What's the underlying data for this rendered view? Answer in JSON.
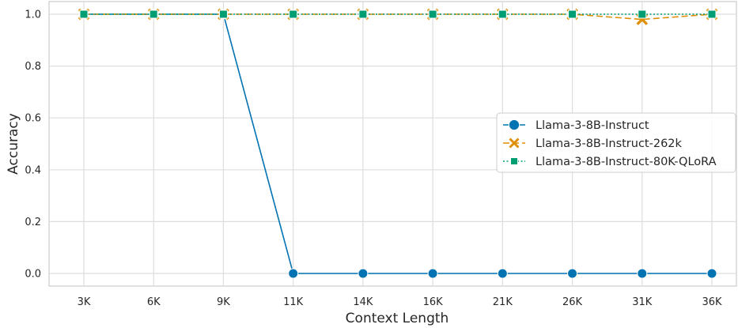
{
  "chart_data": {
    "type": "line",
    "xlabel": "Context Length",
    "ylabel": "Accuracy",
    "categories": [
      "3K",
      "6K",
      "9K",
      "11K",
      "14K",
      "16K",
      "21K",
      "26K",
      "31K",
      "36K"
    ],
    "ylim": [
      -0.05,
      1.05
    ],
    "yticks": [
      "0.0",
      "0.2",
      "0.4",
      "0.6",
      "0.8",
      "1.0"
    ],
    "grid": true,
    "legend_position": "center-right",
    "series": [
      {
        "name": "Llama-3-8B-Instruct",
        "values": [
          1.0,
          1.0,
          1.0,
          0.0,
          0.0,
          0.0,
          0.0,
          0.0,
          0.0,
          0.0
        ],
        "color": "#0173b2",
        "marker": "circle",
        "linestyle": "solid"
      },
      {
        "name": "Llama-3-8B-Instruct-262k",
        "values": [
          1.0,
          1.0,
          1.0,
          1.0,
          1.0,
          1.0,
          1.0,
          1.0,
          0.98,
          1.0
        ],
        "color": "#de8f05",
        "marker": "x",
        "linestyle": "dashed"
      },
      {
        "name": "Llama-3-8B-Instruct-80K-QLoRA",
        "values": [
          1.0,
          1.0,
          1.0,
          1.0,
          1.0,
          1.0,
          1.0,
          1.0,
          1.0,
          1.0
        ],
        "color": "#029e73",
        "marker": "square",
        "linestyle": "dotted"
      }
    ]
  }
}
